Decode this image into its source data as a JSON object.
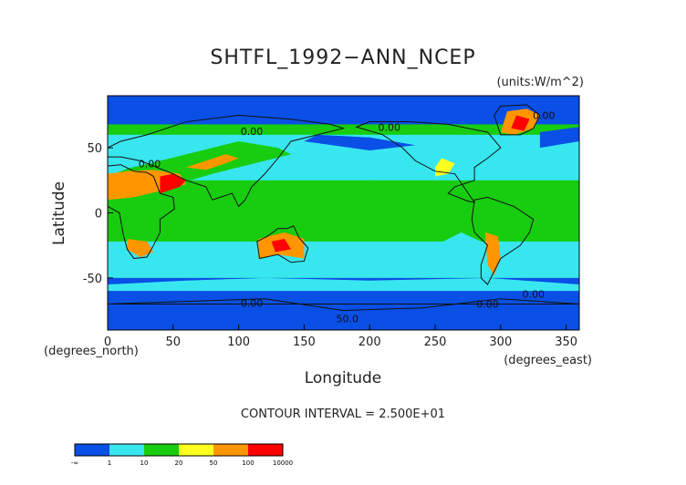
{
  "chart_data": {
    "type": "heatmap",
    "title": "SHTFL_1992−ANN_NCEP",
    "units_label": "(units:W/m^2)",
    "xlabel": "Longitude",
    "ylabel": "Latitude",
    "x_unit_label": "(degrees_east)",
    "y_unit_label": "(degrees_north)",
    "xlim": [
      0,
      360
    ],
    "ylim": [
      -90,
      90
    ],
    "x_ticks": [
      0,
      50,
      100,
      150,
      200,
      250,
      300,
      350
    ],
    "y_ticks": [
      50,
      0,
      -50
    ],
    "contour_interval_text": "CONTOUR INTERVAL = 2.500E+01",
    "contour_labels": [
      {
        "text": "0.00",
        "lon": 32,
        "lat": 35
      },
      {
        "text": "0.00",
        "lon": 110,
        "lat": 60
      },
      {
        "text": "0.00",
        "lon": 215,
        "lat": 63
      },
      {
        "text": "0.00",
        "lon": 333,
        "lat": 72
      },
      {
        "text": "0.00",
        "lon": 110,
        "lat": -72
      },
      {
        "text": "0.00",
        "lon": 290,
        "lat": -73
      },
      {
        "text": "0.00",
        "lon": 325,
        "lat": -65
      },
      {
        "text": "50.0",
        "lon": 183,
        "lat": -84
      }
    ],
    "legend": {
      "colors": [
        "#0a4fe6",
        "#38e6f0",
        "#18cc10",
        "#ffff20",
        "#ff9600",
        "#ff0000"
      ],
      "tick_labels": [
        "-∞",
        "1",
        "10",
        "20",
        "50",
        "100",
        "10000"
      ]
    },
    "field_regions": [
      {
        "region": "Southern Ocean & Antarctic",
        "lon": [
          0,
          360
        ],
        "lat": [
          -90,
          -50
        ],
        "value_range": "<1 (negative)"
      },
      {
        "region": "Tropical oceans",
        "lon": [
          40,
          290
        ],
        "lat": [
          -20,
          30
        ],
        "value_range": "10-20"
      },
      {
        "region": "Subtropical oceans",
        "lon": [
          0,
          360
        ],
        "lat": [
          -45,
          45
        ],
        "value_range": "1-10"
      },
      {
        "region": "Arctic & sea ice",
        "lon": [
          0,
          360
        ],
        "lat": [
          65,
          90
        ],
        "value_range": "<1"
      },
      {
        "region": "Sahara / Arabia",
        "lon": [
          0,
          60
        ],
        "lat": [
          10,
          35
        ],
        "value_range": "50-100+"
      },
      {
        "region": "Australia interior",
        "lon": [
          115,
          150
        ],
        "lat": [
          -35,
          -15
        ],
        "value_range": "50-100+"
      },
      {
        "region": "Greenland",
        "lon": [
          300,
          330
        ],
        "lat": [
          60,
          80
        ],
        "value_range": "50-100+"
      },
      {
        "region": "Southern Andes / Patagonia",
        "lon": [
          285,
          305
        ],
        "lat": [
          -45,
          -15
        ],
        "value_range": "50-100"
      }
    ]
  }
}
